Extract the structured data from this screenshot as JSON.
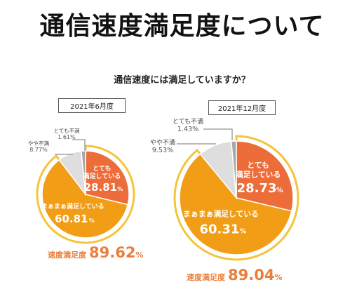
{
  "page_title": "通信速度満足度について",
  "question": "通信速度には満足していますか？",
  "chart_data": [
    {
      "type": "pie",
      "period": "2021年6月度",
      "slices": [
        {
          "label": "とても満足している",
          "value": 28.81,
          "value_text": "28.81",
          "color": "#ec6d3a"
        },
        {
          "label": "まぁまぁ満足している",
          "value": 60.81,
          "value_text": "60.81",
          "color": "#f19d16"
        },
        {
          "label": "やや不満",
          "value": 8.77,
          "value_text": "8.77%",
          "color": "#dedede"
        },
        {
          "label": "とても不満",
          "value": 1.61,
          "value_text": "1.61%",
          "color": "#a7a7a7"
        }
      ],
      "summary_label": "速度満足度",
      "summary_value": "89.62",
      "highlight_color": "#f4c43c"
    },
    {
      "type": "pie",
      "period": "2021年12月度",
      "slices": [
        {
          "label": "とても満足している",
          "value": 28.73,
          "value_text": "28.73",
          "color": "#ec6d3a"
        },
        {
          "label": "まぁまぁ満足している",
          "value": 60.31,
          "value_text": "60.31",
          "color": "#f19d16"
        },
        {
          "label": "やや不満",
          "value": 9.53,
          "value_text": "9.53%",
          "color": "#dedede"
        },
        {
          "label": "とても不満",
          "value": 1.43,
          "value_text": "1.43%",
          "color": "#a7a7a7"
        }
      ],
      "summary_label": "速度満足度",
      "summary_value": "89.04",
      "highlight_color": "#f4c43c"
    }
  ],
  "percent_sign": "%",
  "arrow_color": "#5ec3ec"
}
